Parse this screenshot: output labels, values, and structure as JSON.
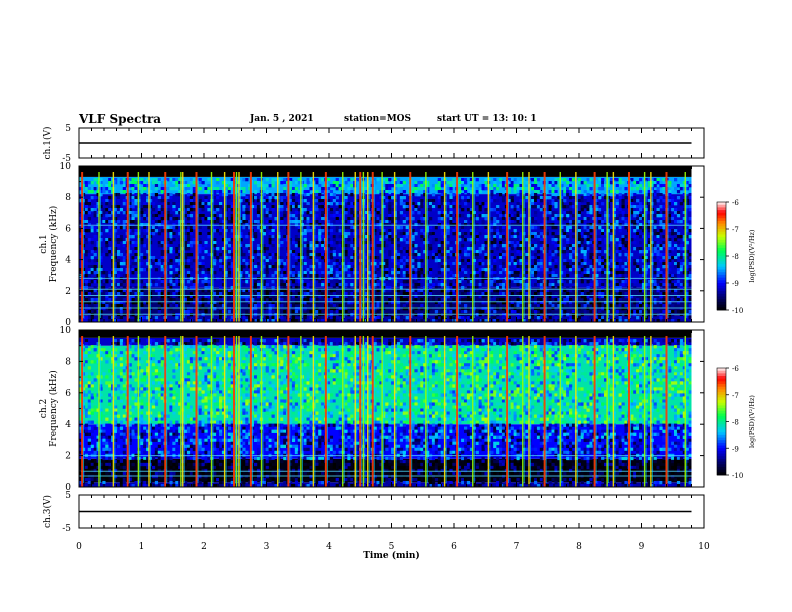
{
  "header": {
    "title": "VLF Spectra",
    "date": "Jan. 5 , 2021",
    "station": "station=MOS",
    "start": "start UT =  13: 10: 1"
  },
  "chart_data": [
    {
      "type": "line",
      "panel": "ch1-waveform",
      "ylabel": "ch.1(V)",
      "ylim": [
        -5,
        5
      ],
      "yticks": [
        "5",
        "-5"
      ],
      "xlim": [
        0,
        10
      ],
      "series": [
        {
          "x": [
            0,
            9.8
          ],
          "values": [
            0,
            0
          ]
        }
      ]
    },
    {
      "type": "heatmap",
      "panel": "ch1-spectrogram",
      "ylabel": "ch.1\nFrequency (kHz)",
      "ylim": [
        0,
        10
      ],
      "yticks": [
        "0",
        "2",
        "4",
        "6",
        "8",
        "10"
      ],
      "xlim": [
        0,
        10
      ],
      "data_end_min": 9.8,
      "bands_khz": [
        [
          0,
          0.4,
          -9.3
        ],
        [
          0.4,
          2.2,
          -9.5
        ],
        [
          2.2,
          8.2,
          -9.2
        ],
        [
          8.2,
          9.3,
          -8.5
        ],
        [
          9.3,
          10,
          -10
        ]
      ],
      "lines_khz": [
        0.5,
        0.9,
        1.3,
        1.7,
        2.1,
        2.8,
        6.2
      ],
      "colorbar": {
        "label": "log(PSD)(V²/Hz)",
        "ticks": [
          "-6",
          "-7",
          "-8",
          "-9",
          "-10"
        ],
        "range": [
          -10,
          -6
        ]
      }
    },
    {
      "type": "heatmap",
      "panel": "ch2-spectrogram",
      "ylabel": "ch.2\nFrequency (kHz)",
      "ylim": [
        0,
        10
      ],
      "yticks": [
        "0",
        "2",
        "4",
        "6",
        "8",
        "10"
      ],
      "xlim": [
        0,
        10
      ],
      "data_end_min": 9.8,
      "bands_khz": [
        [
          0,
          0.3,
          -9.3
        ],
        [
          0.3,
          1.8,
          -9.9
        ],
        [
          1.8,
          4.0,
          -9.0
        ],
        [
          4.0,
          9.0,
          -8.1
        ],
        [
          9.0,
          9.5,
          -9.2
        ],
        [
          9.5,
          10,
          -10
        ]
      ],
      "lines_khz": [
        0.7,
        1.0,
        2.0
      ],
      "colorbar": {
        "label": "log(PSD)(V²/Hz)",
        "ticks": [
          "-6",
          "-7",
          "-8",
          "-9",
          "-10"
        ],
        "range": [
          -10,
          -6
        ]
      }
    },
    {
      "type": "line",
      "panel": "ch3-waveform",
      "ylabel": "ch.3(V)",
      "ylim": [
        -5,
        5
      ],
      "yticks": [
        "5",
        "-5"
      ],
      "xlim": [
        0,
        10
      ],
      "series": [
        {
          "x": [
            0,
            9.8
          ],
          "values": [
            0,
            0
          ]
        }
      ]
    }
  ],
  "x_axis": {
    "label": "Time (min)",
    "ticks": [
      "0",
      "1",
      "2",
      "3",
      "4",
      "5",
      "6",
      "7",
      "8",
      "9",
      "10"
    ]
  },
  "sferic_times_min": [
    0.05,
    0.32,
    0.55,
    0.78,
    0.95,
    1.12,
    1.38,
    1.63,
    1.66,
    1.88,
    2.12,
    2.33,
    2.48,
    2.52,
    2.56,
    2.75,
    2.92,
    3.18,
    3.35,
    3.55,
    3.75,
    3.95,
    4.22,
    4.42,
    4.5,
    4.55,
    4.62,
    4.7,
    4.85,
    5.05,
    5.3,
    5.55,
    5.85,
    6.05,
    6.3,
    6.55,
    6.85,
    7.1,
    7.2,
    7.45,
    7.7,
    7.95,
    8.25,
    8.45,
    8.55,
    8.8,
    9.05,
    9.15,
    9.4,
    9.7
  ]
}
